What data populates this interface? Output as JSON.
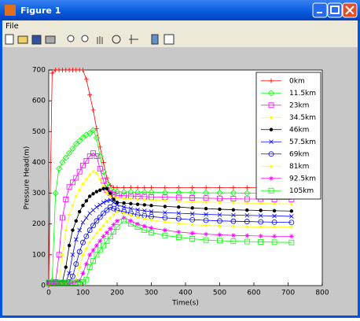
{
  "window": {
    "title": "Figure 1",
    "menu": [
      "File"
    ]
  },
  "chart_data": {
    "type": "line",
    "xlabel": "Time(s)",
    "ylabel": "Pressure Head(m)",
    "x": [
      0,
      10,
      20,
      30,
      40,
      50,
      60,
      70,
      80,
      90,
      100,
      110,
      120,
      130,
      140,
      150,
      160,
      170,
      180,
      190,
      200,
      220,
      240,
      260,
      280,
      300,
      340,
      380,
      420,
      460,
      500,
      540,
      580,
      620,
      660,
      710
    ],
    "xlim": [
      0,
      800
    ],
    "xticks": [
      0,
      100,
      200,
      300,
      400,
      500,
      600,
      700,
      800
    ],
    "ylim": [
      0,
      700
    ],
    "yticks": [
      0,
      100,
      200,
      300,
      400,
      500,
      600,
      700
    ],
    "grid": false,
    "legend": "upper right",
    "series": [
      {
        "name": "0km",
        "color": "#ff0000",
        "marker": "plus",
        "values": [
          0,
          690,
          700,
          700,
          700,
          700,
          700,
          700,
          700,
          700,
          700,
          670,
          620,
          570,
          510,
          450,
          400,
          350,
          325,
          318,
          318,
          318,
          318,
          318,
          318,
          318,
          318,
          318,
          318,
          318,
          318,
          318,
          318,
          318,
          318,
          318
        ]
      },
      {
        "name": "11.5km",
        "color": "#00ff00",
        "marker": "diamond",
        "values": [
          10,
          15,
          300,
          380,
          400,
          415,
          430,
          445,
          460,
          470,
          480,
          490,
          495,
          505,
          480,
          420,
          370,
          330,
          310,
          305,
          305,
          304,
          304,
          303,
          303,
          303,
          302,
          302,
          302,
          301,
          301,
          301,
          300,
          300,
          300,
          300
        ]
      },
      {
        "name": "23km",
        "color": "#ff00ff",
        "marker": "square",
        "values": [
          10,
          10,
          12,
          100,
          220,
          280,
          320,
          335,
          350,
          370,
          390,
          405,
          420,
          430,
          420,
          380,
          340,
          310,
          300,
          295,
          293,
          292,
          291,
          290,
          289,
          288,
          287,
          286,
          285,
          284,
          283,
          282,
          281,
          281,
          280,
          280
        ]
      },
      {
        "name": "34.5km",
        "color": "#ffff00",
        "marker": "point",
        "values": [
          10,
          10,
          10,
          12,
          100,
          180,
          230,
          260,
          290,
          310,
          330,
          345,
          360,
          370,
          365,
          345,
          320,
          300,
          290,
          287,
          285,
          283,
          282,
          280,
          279,
          278,
          276,
          274,
          272,
          271,
          270,
          269,
          268,
          267,
          266,
          265
        ]
      },
      {
        "name": "46km",
        "color": "#000000",
        "marker": "dot",
        "values": [
          10,
          10,
          10,
          10,
          12,
          60,
          130,
          180,
          210,
          240,
          260,
          275,
          290,
          298,
          305,
          310,
          315,
          315,
          300,
          280,
          270,
          268,
          266,
          264,
          262,
          260,
          257,
          255,
          252,
          250,
          248,
          246,
          245,
          244,
          243,
          242
        ]
      },
      {
        "name": "57.5km",
        "color": "#0000ff",
        "marker": "x",
        "values": [
          10,
          10,
          10,
          10,
          10,
          12,
          40,
          100,
          150,
          180,
          205,
          220,
          235,
          245,
          255,
          262,
          270,
          275,
          278,
          270,
          262,
          255,
          250,
          246,
          243,
          240,
          237,
          235,
          233,
          231,
          230,
          229,
          228,
          227,
          226,
          225
        ]
      },
      {
        "name": "69km",
        "color": "#0000ff",
        "marker": "circle",
        "values": [
          10,
          10,
          10,
          10,
          10,
          10,
          12,
          30,
          70,
          110,
          140,
          160,
          180,
          195,
          210,
          222,
          235,
          245,
          255,
          250,
          245,
          240,
          235,
          230,
          227,
          224,
          220,
          217,
          214,
          212,
          210,
          209,
          208,
          207,
          206,
          205
        ]
      },
      {
        "name": "81km",
        "color": "#ffff00",
        "marker": "point",
        "values": [
          10,
          10,
          10,
          10,
          10,
          10,
          10,
          12,
          20,
          60,
          100,
          120,
          140,
          155,
          170,
          182,
          195,
          208,
          220,
          230,
          240,
          235,
          228,
          222,
          217,
          213,
          207,
          202,
          198,
          195,
          193,
          192,
          191,
          190,
          190,
          190
        ]
      },
      {
        "name": "92.5km",
        "color": "#ff00ff",
        "marker": "star",
        "values": [
          10,
          10,
          10,
          10,
          10,
          10,
          10,
          10,
          12,
          15,
          40,
          70,
          100,
          115,
          130,
          145,
          160,
          172,
          185,
          198,
          210,
          220,
          210,
          200,
          193,
          187,
          180,
          174,
          170,
          167,
          165,
          163,
          162,
          161,
          160,
          160
        ]
      },
      {
        "name": "105km",
        "color": "#00ff00",
        "marker": "square",
        "values": [
          10,
          10,
          10,
          10,
          10,
          10,
          10,
          10,
          10,
          12,
          12,
          20,
          60,
          80,
          100,
          115,
          130,
          145,
          160,
          175,
          190,
          210,
          200,
          190,
          180,
          172,
          163,
          157,
          152,
          148,
          146,
          144,
          143,
          142,
          141,
          140
        ]
      }
    ]
  }
}
